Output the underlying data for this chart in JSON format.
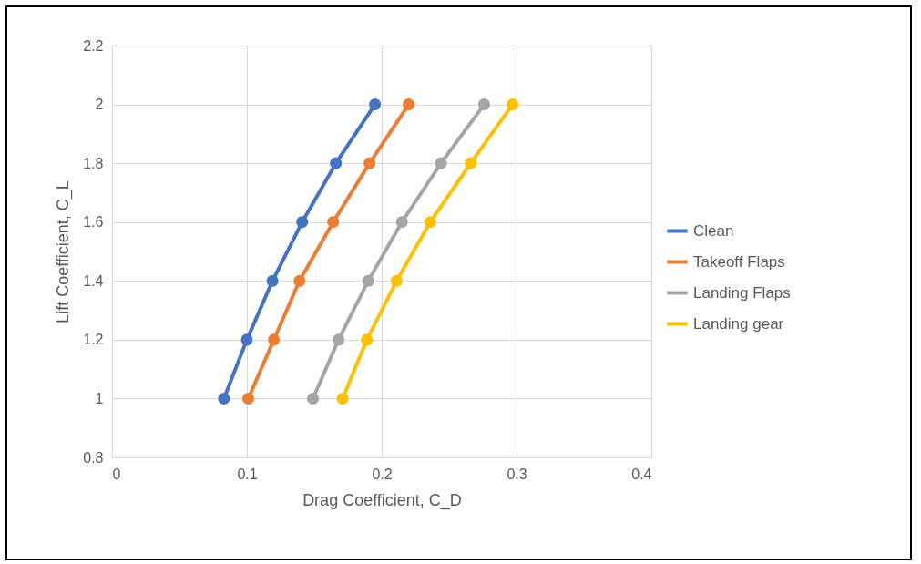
{
  "chart_data": {
    "type": "line",
    "xlabel": "Drag Coefficient, C_D",
    "ylabel": "Lift Coefficient, C_L",
    "xlim": [
      0,
      0.4
    ],
    "xticks": [
      0,
      0.1,
      0.2,
      0.3,
      0.4
    ],
    "ylim": [
      0.8,
      2.2
    ],
    "yticks": [
      0.8,
      1,
      1.2,
      1.4,
      1.6,
      1.8,
      2,
      2.2
    ],
    "grid": true,
    "legend": "right",
    "marker": "circle",
    "series": [
      {
        "name": "Clean",
        "color": "#4472c4",
        "x": [
          0.083,
          0.1,
          0.119,
          0.141,
          0.166,
          0.195
        ],
        "values": [
          1,
          1.2,
          1.4,
          1.6,
          1.8,
          2
        ]
      },
      {
        "name": "Takeoff Flaps",
        "color": "#ed7d31",
        "x": [
          0.101,
          0.12,
          0.139,
          0.164,
          0.191,
          0.22
        ],
        "values": [
          1,
          1.2,
          1.4,
          1.6,
          1.8,
          2
        ]
      },
      {
        "name": "Landing Flaps",
        "color": "#a5a5a5",
        "x": [
          0.149,
          0.168,
          0.19,
          0.215,
          0.244,
          0.276
        ],
        "values": [
          1,
          1.2,
          1.4,
          1.6,
          1.8,
          2
        ]
      },
      {
        "name": "Landing gear",
        "color": "#ffc000",
        "x": [
          0.171,
          0.189,
          0.211,
          0.236,
          0.266,
          0.297
        ],
        "values": [
          1,
          1.2,
          1.4,
          1.6,
          1.8,
          2
        ]
      }
    ]
  }
}
